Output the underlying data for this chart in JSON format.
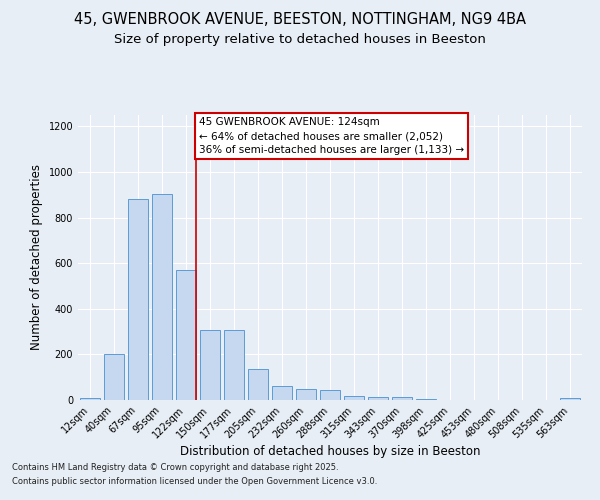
{
  "title_line1": "45, GWENBROOK AVENUE, BEESTON, NOTTINGHAM, NG9 4BA",
  "title_line2": "Size of property relative to detached houses in Beeston",
  "xlabel": "Distribution of detached houses by size in Beeston",
  "ylabel": "Number of detached properties",
  "categories": [
    "12sqm",
    "40sqm",
    "67sqm",
    "95sqm",
    "122sqm",
    "150sqm",
    "177sqm",
    "205sqm",
    "232sqm",
    "260sqm",
    "288sqm",
    "315sqm",
    "343sqm",
    "370sqm",
    "398sqm",
    "425sqm",
    "453sqm",
    "480sqm",
    "508sqm",
    "535sqm",
    "563sqm"
  ],
  "values": [
    10,
    200,
    880,
    905,
    570,
    305,
    305,
    135,
    60,
    50,
    42,
    18,
    12,
    15,
    3,
    2,
    2,
    1,
    0,
    0,
    8
  ],
  "bar_color": "#c5d8f0",
  "bar_edge_color": "#5b9bd5",
  "highlight_index": 4,
  "highlight_line_color": "#cc0000",
  "annotation_title": "45 GWENBROOK AVENUE: 124sqm",
  "annotation_line1": "← 64% of detached houses are smaller (2,052)",
  "annotation_line2": "36% of semi-detached houses are larger (1,133) →",
  "annotation_border_color": "#cc0000",
  "ylim": [
    0,
    1250
  ],
  "yticks": [
    0,
    200,
    400,
    600,
    800,
    1000,
    1200
  ],
  "bg_color": "#e8eef6",
  "plot_bg_color": "#e8eef6",
  "footer_line1": "Contains HM Land Registry data © Crown copyright and database right 2025.",
  "footer_line2": "Contains public sector information licensed under the Open Government Licence v3.0.",
  "title_fontsize": 10.5,
  "subtitle_fontsize": 9.5,
  "tick_fontsize": 7,
  "label_fontsize": 8.5,
  "annotation_fontsize": 7.5,
  "footer_fontsize": 6
}
